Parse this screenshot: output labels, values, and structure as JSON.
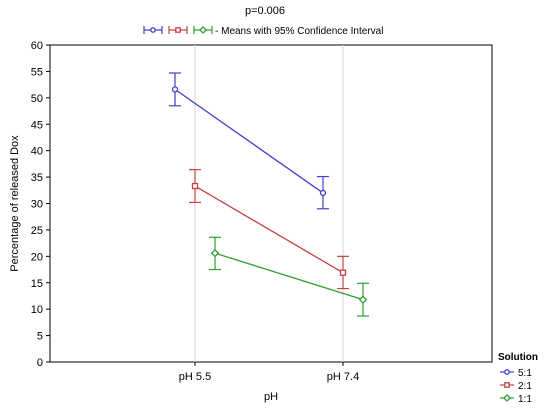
{
  "chart_data": {
    "type": "line",
    "title": "p=0.006",
    "subtitle": "- Means with 95% Confidence Interval",
    "xlabel": "pH",
    "ylabel": "Percentage of released Dox",
    "categories": [
      "pH 5.5",
      "pH 7.4"
    ],
    "ylim": [
      0,
      60
    ],
    "yticks": [
      0,
      5,
      10,
      15,
      20,
      25,
      30,
      35,
      40,
      45,
      50,
      55,
      60
    ],
    "grid": "vertical",
    "legend_title": "Solution",
    "legend_position": "bottom-right",
    "series": [
      {
        "name": "5:1",
        "color": "#4040c8",
        "marker": "circle",
        "values": [
          51.6,
          32.0
        ],
        "ci_low": [
          48.5,
          29.0
        ],
        "ci_high": [
          54.7,
          35.1
        ]
      },
      {
        "name": "2:1",
        "color": "#c84040",
        "marker": "square",
        "values": [
          33.3,
          16.9
        ],
        "ci_low": [
          30.2,
          13.9
        ],
        "ci_high": [
          36.4,
          20.0
        ]
      },
      {
        "name": "1:1",
        "color": "#30a030",
        "marker": "diamond",
        "values": [
          20.6,
          11.8
        ],
        "ci_low": [
          17.5,
          8.7
        ],
        "ci_high": [
          23.6,
          14.9
        ]
      }
    ]
  }
}
